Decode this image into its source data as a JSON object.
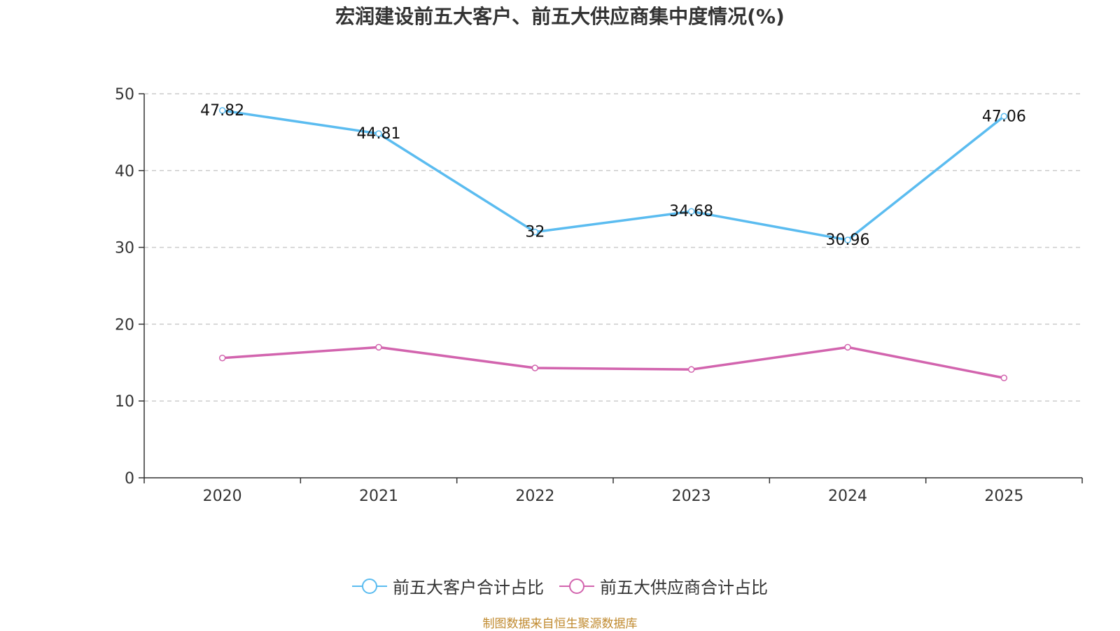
{
  "chart_data": {
    "type": "line",
    "title": "宏润建设前五大客户、前五大供应商集中度情况(%)",
    "categories": [
      "2020",
      "2021",
      "2022",
      "2023",
      "2024",
      "2025"
    ],
    "series": [
      {
        "name": "前五大客户合计占比",
        "color": "#5bbcf0",
        "values": [
          47.82,
          44.81,
          32,
          34.68,
          30.96,
          47.06
        ],
        "value_labels": [
          "47.82",
          "44.81",
          "32",
          "34.68",
          "30.96",
          "47.06"
        ]
      },
      {
        "name": "前五大供应商合计占比",
        "color": "#d264ae",
        "values": [
          15.6,
          17.0,
          14.3,
          14.1,
          17.0,
          13.0
        ]
      }
    ],
    "y_ticks": [
      "0",
      "10",
      "20",
      "30",
      "40",
      "50"
    ],
    "ylim": [
      0,
      50
    ],
    "grid": true,
    "legend_position": "bottom"
  },
  "source": "制图数据来自恒生聚源数据库"
}
